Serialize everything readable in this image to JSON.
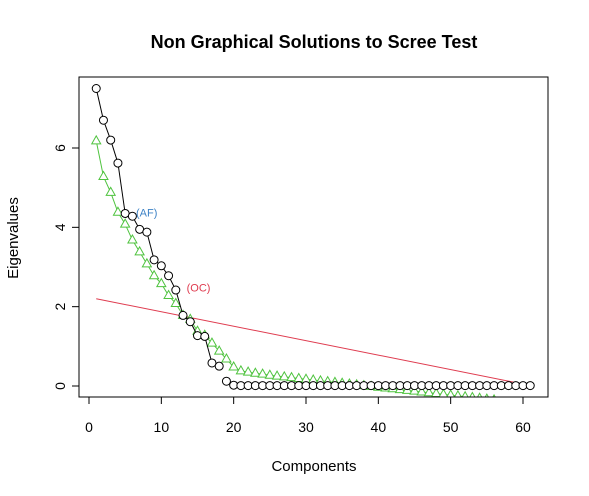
{
  "chart_data": {
    "type": "scatter",
    "title": "Non Graphical Solutions to Scree Test",
    "xlabel": "Components",
    "ylabel": "Eigenvalues",
    "xlim": [
      0,
      63
    ],
    "ylim": [
      -0.3,
      7.8
    ],
    "xticks": [
      0,
      10,
      20,
      30,
      40,
      50,
      60
    ],
    "yticks": [
      0,
      2,
      4,
      6
    ],
    "grid": false,
    "series": [
      {
        "role": "eigenvalues",
        "marker": "circle",
        "color": "#000000",
        "connect_first": 17,
        "x": [
          1,
          2,
          3,
          4,
          5,
          6,
          7,
          8,
          9,
          10,
          11,
          12,
          13,
          14,
          15,
          16,
          17,
          18,
          19,
          20,
          21,
          22,
          23,
          24,
          25,
          26,
          27,
          28,
          29,
          30,
          31,
          32,
          33,
          34,
          35,
          36,
          37,
          38,
          39,
          40,
          41,
          42,
          43,
          44,
          45,
          46,
          47,
          48,
          49,
          50,
          51,
          52,
          53,
          54,
          55,
          56,
          57,
          58,
          59,
          60,
          61
        ],
        "values": [
          7.5,
          6.7,
          6.2,
          5.62,
          4.35,
          4.28,
          3.95,
          3.88,
          3.18,
          3.03,
          2.78,
          2.42,
          1.78,
          1.62,
          1.27,
          1.25,
          0.58,
          0.5,
          0.12,
          0.02,
          0.01,
          0.01,
          0.01,
          0.01,
          0.01,
          0.01,
          0.01,
          0.01,
          0.01,
          0.01,
          0.01,
          0.01,
          0.01,
          0.01,
          0.01,
          0.01,
          0.01,
          0.01,
          0.01,
          0.01,
          0.01,
          0.01,
          0.01,
          0.01,
          0.01,
          0.01,
          0.01,
          0.01,
          0.01,
          0.01,
          0.01,
          0.01,
          0.01,
          0.01,
          0.01,
          0.01,
          0.01,
          0.01,
          0.01,
          0.01,
          0.01
        ]
      },
      {
        "role": "acceleration-factor",
        "marker": "triangle",
        "color": "#4fc33f",
        "x": [
          1,
          2,
          3,
          4,
          5,
          6,
          7,
          8,
          9,
          10,
          11,
          12,
          13,
          14,
          15,
          16,
          17,
          18,
          19,
          20,
          21,
          22,
          23,
          24,
          25,
          26,
          27,
          28,
          29,
          30,
          31,
          32,
          33,
          34,
          35,
          36,
          37,
          38,
          39,
          40,
          41,
          42,
          43,
          44,
          45,
          46,
          47,
          48,
          49,
          50,
          51,
          52,
          53,
          54,
          55,
          56
        ],
        "values": [
          6.18,
          5.28,
          4.88,
          4.38,
          4.08,
          3.68,
          3.38,
          3.08,
          2.78,
          2.58,
          2.28,
          2.08,
          1.78,
          1.68,
          1.38,
          1.28,
          1.08,
          0.88,
          0.68,
          0.48,
          0.38,
          0.35,
          0.32,
          0.3,
          0.27,
          0.25,
          0.23,
          0.21,
          0.19,
          0.17,
          0.15,
          0.13,
          0.11,
          0.09,
          0.07,
          0.05,
          0.03,
          0.01,
          -0.01,
          -0.03,
          -0.05,
          -0.07,
          -0.09,
          -0.11,
          -0.13,
          -0.15,
          -0.17,
          -0.19,
          -0.21,
          -0.23,
          -0.25,
          -0.27,
          -0.29,
          -0.31,
          -0.33,
          -0.35
        ]
      }
    ],
    "reference_line": {
      "color": "#df3b4f",
      "x": [
        1,
        60
      ],
      "values": [
        2.2,
        0.05
      ]
    },
    "annotations": [
      {
        "text": "(AF)",
        "x": 6.5,
        "y": 4.38,
        "color": "#3f83c6"
      },
      {
        "text": "(OC)",
        "x": 13.5,
        "y": 2.48,
        "color": "#df3b4f"
      }
    ]
  }
}
